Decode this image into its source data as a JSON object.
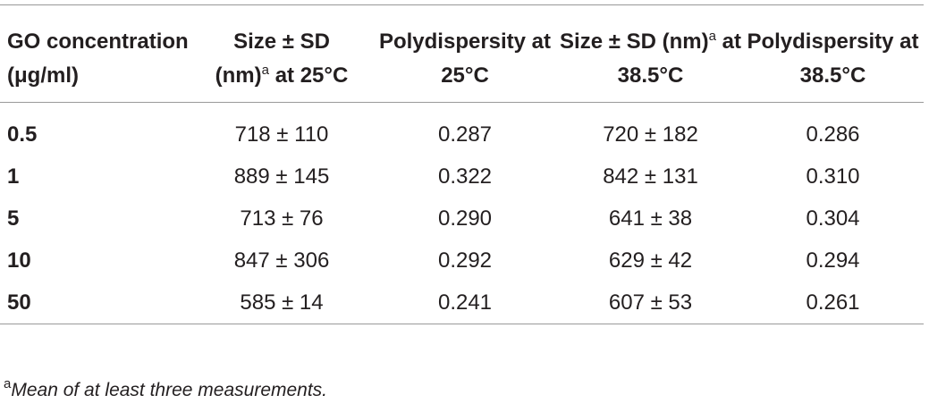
{
  "table": {
    "headers": [
      {
        "text": "GO concentration (μg/ml)"
      },
      {
        "text": "Size ± SD (nm)",
        "sup": "a",
        "text2": "at 25°C"
      },
      {
        "text": "Polydispersity at 25°C"
      },
      {
        "text": "Size ± SD (nm)",
        "sup": "a",
        "text2": "at 38.5°C"
      },
      {
        "text": "Polydispersity at 38.5°C"
      }
    ],
    "rows": [
      [
        "0.5",
        "718 ± 110",
        "0.287",
        "720 ± 182",
        "0.286"
      ],
      [
        "1",
        "889 ± 145",
        "0.322",
        "842 ± 131",
        "0.310"
      ],
      [
        "5",
        "713 ± 76",
        "0.290",
        "641 ± 38",
        "0.304"
      ],
      [
        "10",
        "847 ± 306",
        "0.292",
        "629 ± 42",
        "0.294"
      ],
      [
        "50",
        "585 ± 14",
        "0.241",
        "607 ± 53",
        "0.261"
      ]
    ]
  },
  "footnote": {
    "sup": "a",
    "text": "Mean of at least three measurements."
  }
}
